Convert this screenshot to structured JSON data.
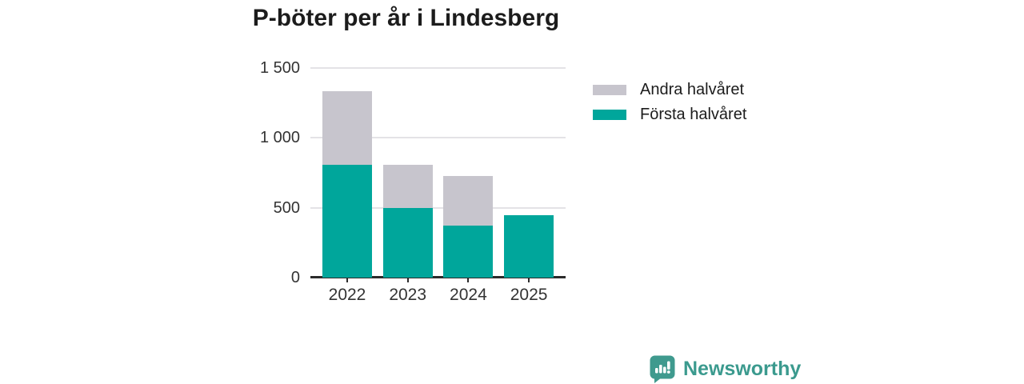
{
  "chart_data": {
    "type": "bar",
    "stacked": true,
    "title": "P-böter per år i Lindesberg",
    "categories": [
      "2022",
      "2023",
      "2024",
      "2025"
    ],
    "series": [
      {
        "name": "Första halvåret",
        "color": "#00a69b",
        "values": [
          805,
          500,
          375,
          445
        ]
      },
      {
        "name": "Andra halvåret",
        "color": "#c7c5cd",
        "values": [
          530,
          305,
          350,
          0
        ]
      }
    ],
    "totals": [
      1335,
      805,
      725,
      445
    ],
    "xlabel": "",
    "ylabel": "",
    "ylim": [
      0,
      1500
    ],
    "yticks": [
      {
        "value": 0,
        "label": "0"
      },
      {
        "value": 500,
        "label": "500"
      },
      {
        "value": 1000,
        "label": "1 000"
      },
      {
        "value": 1500,
        "label": "1 500"
      }
    ],
    "grid": "horizontal",
    "legend_position": "right",
    "legend": [
      "Andra halvåret",
      "Första halvåret"
    ]
  },
  "colors": {
    "first_half": "#00a69b",
    "second_half": "#c7c5cd",
    "axis": "#2b2b2b",
    "tick_text": "#333333",
    "title_text": "#1c1c1c",
    "gridline": "#e4e3e6",
    "brand": "#3b9a8e"
  },
  "footer": {
    "brand": "Newsworthy",
    "icon": "bar-chart-speech-bubble-icon"
  }
}
